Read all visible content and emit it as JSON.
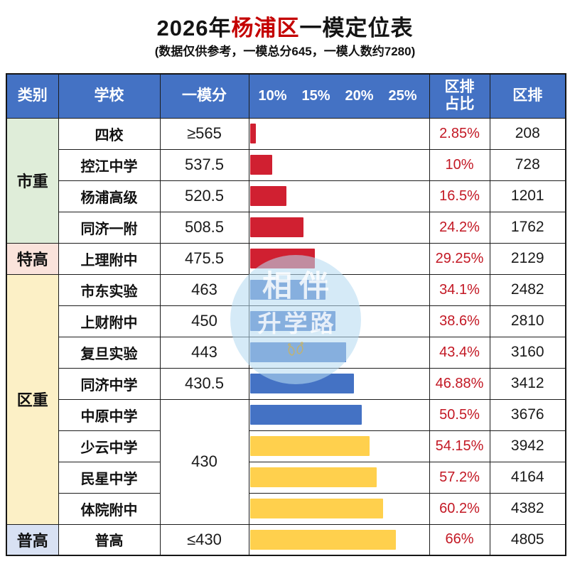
{
  "title": {
    "part1": "2026年",
    "highlight": "杨浦区",
    "part2": "一模定位表",
    "subtitle": "(数据仅供参考，一模总分645，一模人数约7280)"
  },
  "header": {
    "category": "类别",
    "school": "学校",
    "score": "一模分",
    "ticks": [
      "10%",
      "15%",
      "20%",
      "25%"
    ],
    "share_line1": "区排",
    "share_line2": "占比",
    "rank": "区排"
  },
  "watermark": {
    "line1": "相伴",
    "line2": "升学路",
    "icon": "footprints-icon"
  },
  "colors": {
    "header_blue": "#4472c4",
    "title_red": "#c40000",
    "share_text_red": "#c31824",
    "bar_red": "#d02031",
    "bar_blue": "#4472c4",
    "bar_yellow": "#ffd04d",
    "cat_green": "#dfedd9",
    "cat_pink": "#fae3db",
    "cat_yellow": "#fcf0c6",
    "cat_blue": "#d8e1f3",
    "grid_line": "#1c1c1c"
  },
  "rows": [
    {
      "cat": {
        "label": "市重",
        "rowspan": 4,
        "bg": "green"
      },
      "school": "四校",
      "score": "≥565",
      "bar": {
        "value": 2.85,
        "color": "red"
      },
      "share": "2.85%",
      "rank": "208"
    },
    {
      "school": "控江中学",
      "score": "537.5",
      "bar": {
        "value": 10,
        "color": "red"
      },
      "share": "10%",
      "rank": "728"
    },
    {
      "school": "杨浦高级",
      "score": "520.5",
      "bar": {
        "value": 16.5,
        "color": "red"
      },
      "share": "16.5%",
      "rank": "1201"
    },
    {
      "school": "同济一附",
      "score": "508.5",
      "bar": {
        "value": 24.2,
        "color": "red"
      },
      "share": "24.2%",
      "rank": "1762"
    },
    {
      "cat": {
        "label": "特高",
        "rowspan": 1,
        "bg": "pink"
      },
      "school": "上理附中",
      "score": "475.5",
      "bar": {
        "value": 29.25,
        "color": "red"
      },
      "share": "29.25%",
      "rank": "2129"
    },
    {
      "cat": {
        "label": "区重",
        "rowspan": 8,
        "bg": "yellow"
      },
      "school": "市东实验",
      "score": "463",
      "bar": {
        "value": 34.1,
        "color": "blue"
      },
      "share": "34.1%",
      "rank": "2482"
    },
    {
      "school": "上财附中",
      "score": "450",
      "bar": {
        "value": 38.6,
        "color": "blue"
      },
      "share": "38.6%",
      "rank": "2810"
    },
    {
      "school": "复旦实验",
      "score": "443",
      "bar": {
        "value": 43.4,
        "color": "blue"
      },
      "share": "43.4%",
      "rank": "3160"
    },
    {
      "school": "同济中学",
      "score": "430.5",
      "bar": {
        "value": 46.88,
        "color": "blue"
      },
      "share": "46.88%",
      "rank": "3412"
    },
    {
      "school": "中原中学",
      "score": "430",
      "scoreRowspan": 4,
      "bar": {
        "value": 50.5,
        "color": "blue"
      },
      "share": "50.5%",
      "rank": "3676"
    },
    {
      "school": "少云中学",
      "score": null,
      "bar": {
        "value": 54.15,
        "color": "yellow"
      },
      "share": "54.15%",
      "rank": "3942"
    },
    {
      "school": "民星中学",
      "score": null,
      "bar": {
        "value": 57.2,
        "color": "yellow"
      },
      "share": "57.2%",
      "rank": "4164"
    },
    {
      "school": "体院附中",
      "score": null,
      "bar": {
        "value": 60.2,
        "color": "yellow"
      },
      "share": "60.2%",
      "rank": "4382"
    },
    {
      "cat": {
        "label": "普高",
        "rowspan": 1,
        "bg": "blue"
      },
      "school": "普高",
      "score": "≤430",
      "bar": {
        "value": 66,
        "color": "yellow"
      },
      "share": "66%",
      "rank": "4805"
    }
  ],
  "chart_data": {
    "type": "bar",
    "orientation": "horizontal",
    "title": "2026年杨浦区一模定位表",
    "subtitle": "(数据仅供参考，一模总分645，一模人数约7280)",
    "categories": [
      "四校",
      "控江中学",
      "杨浦高级",
      "同济一附",
      "上理附中",
      "市东实验",
      "上财附中",
      "复旦实验",
      "同济中学",
      "中原中学",
      "少云中学",
      "民星中学",
      "体院附中",
      "普高"
    ],
    "values": [
      2.85,
      10,
      16.5,
      24.2,
      29.25,
      34.1,
      38.6,
      43.4,
      46.88,
      50.5,
      54.15,
      57.2,
      60.2,
      66
    ],
    "value_unit": "%",
    "bar_colors": [
      "red",
      "red",
      "red",
      "red",
      "red",
      "blue",
      "blue",
      "blue",
      "blue",
      "blue",
      "yellow",
      "yellow",
      "yellow",
      "yellow"
    ],
    "axis_tick_labels": [
      "10%",
      "15%",
      "20%",
      "25%"
    ],
    "xlim": [
      0,
      81
    ],
    "grid": false,
    "legend": "none",
    "extra_columns": {
      "区排占比": [
        "2.85%",
        "10%",
        "16.5%",
        "24.2%",
        "29.25%",
        "34.1%",
        "38.6%",
        "43.4%",
        "46.88%",
        "50.5%",
        "54.15%",
        "57.2%",
        "60.2%",
        "66%"
      ],
      "区排": [
        "208",
        "728",
        "1201",
        "1762",
        "2129",
        "2482",
        "2810",
        "3160",
        "3412",
        "3676",
        "3942",
        "4164",
        "4382",
        "4805"
      ],
      "一模分": [
        "≥565",
        "537.5",
        "520.5",
        "508.5",
        "475.5",
        "463",
        "450",
        "443",
        "430.5",
        "430",
        "430",
        "430",
        "430",
        "≤430"
      ],
      "类别": [
        "市重",
        "市重",
        "市重",
        "市重",
        "特高",
        "区重",
        "区重",
        "区重",
        "区重",
        "区重",
        "区重",
        "区重",
        "区重",
        "普高"
      ]
    }
  }
}
